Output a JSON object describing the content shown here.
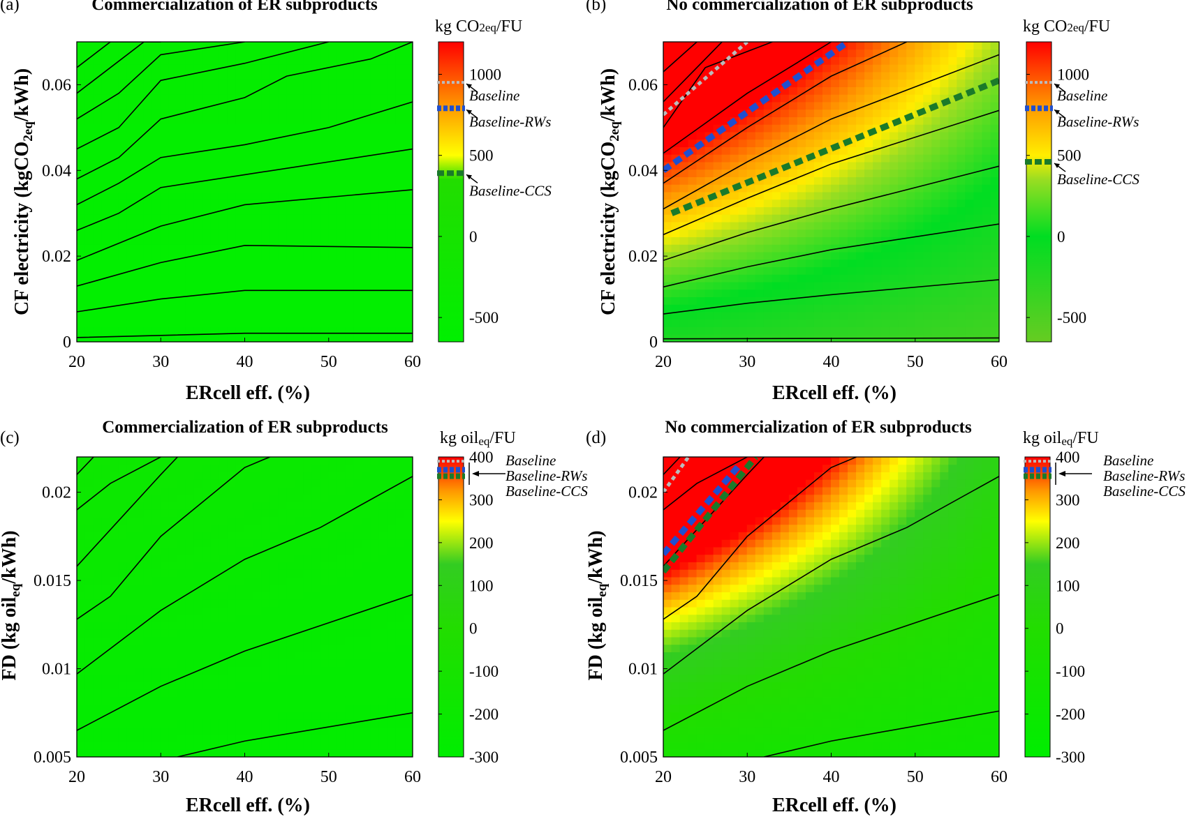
{
  "figure": {
    "colors": {
      "green": "#00e000",
      "yellow": "#ffff00",
      "orange": "#ff8c00",
      "red": "#ff0000",
      "baseline_marker": "#bbbbbb",
      "rws_marker": "#1f4fd0",
      "ccs_marker": "#1a7a2a",
      "contour": "#000000"
    }
  },
  "chart_data": [
    {
      "type": "heatmap",
      "panel": "(a)",
      "title": "Commercialization of ER subproducts",
      "xlabel": "ERcell eff. (%)",
      "ylabel_main": "CF electricity (kgCO",
      "ylabel_sub": "2eq",
      "ylabel_tail": "/kWh)",
      "xlim": [
        20,
        60
      ],
      "ylim": [
        0,
        0.07
      ],
      "xticks": [
        "20",
        "30",
        "40",
        "50",
        "60"
      ],
      "yticks": [
        "0",
        "0.02",
        "0.04",
        "0.06"
      ],
      "ytick_values": [
        0,
        0.02,
        0.04,
        0.06
      ],
      "colorbar": {
        "title_main": "kg CO",
        "title_sub": "2eq",
        "title_tail": "/FU",
        "range": [
          -650,
          1200
        ],
        "stops": [
          [
            -650,
            "#00f000"
          ],
          [
            350,
            "#22dd00"
          ],
          [
            500,
            "#ffff00"
          ],
          [
            800,
            "#ff9900"
          ],
          [
            1200,
            "#ff0000"
          ]
        ],
        "ticks": [
          "-500",
          "0",
          "500",
          "1000"
        ],
        "tick_values": [
          -500,
          0,
          500,
          1000
        ]
      },
      "fill": [
        {
          "range": [
            0,
            1
          ],
          "values": [
            [
              0.02,
              0.02
            ],
            [
              0.09,
              0.09
            ]
          ]
        }
      ],
      "contours": [
        {
          "x": [
            20,
            30,
            40,
            60
          ],
          "y": [
            0.001,
            0.0015,
            0.002,
            0.002
          ]
        },
        {
          "x": [
            20,
            30,
            40,
            60
          ],
          "y": [
            0.007,
            0.01,
            0.012,
            0.012
          ]
        },
        {
          "x": [
            20,
            30,
            40,
            60
          ],
          "y": [
            0.013,
            0.0185,
            0.0225,
            0.022
          ]
        },
        {
          "x": [
            20,
            30,
            40,
            60
          ],
          "y": [
            0.019,
            0.027,
            0.032,
            0.0355
          ]
        },
        {
          "x": [
            20,
            25,
            30,
            40,
            60
          ],
          "y": [
            0.026,
            0.03,
            0.036,
            0.039,
            0.045
          ]
        },
        {
          "x": [
            20,
            25,
            30,
            40,
            50,
            60
          ],
          "y": [
            0.032,
            0.037,
            0.043,
            0.046,
            0.05,
            0.056
          ]
        },
        {
          "x": [
            20,
            25,
            30,
            40,
            45,
            55,
            60
          ],
          "y": [
            0.038,
            0.043,
            0.052,
            0.057,
            0.062,
            0.066,
            0.07
          ]
        },
        {
          "x": [
            20,
            25,
            30,
            40,
            50
          ],
          "y": [
            0.045,
            0.05,
            0.061,
            0.065,
            0.07
          ]
        },
        {
          "x": [
            20,
            25,
            30,
            40
          ],
          "y": [
            0.052,
            0.058,
            0.067,
            0.07
          ]
        },
        {
          "x": [
            20,
            28,
            30
          ],
          "y": [
            0.058,
            0.07,
            0.07
          ]
        },
        {
          "x": [
            20,
            24,
            30
          ],
          "y": [
            0.064,
            0.07,
            0.07
          ]
        }
      ],
      "markers": [
        {
          "name": "Baseline",
          "value": 950,
          "style": "dotted"
        },
        {
          "name": "Baseline-RWs",
          "value": 790,
          "style": "dashed"
        },
        {
          "name": "Baseline-CCS",
          "value": 390,
          "style": "long-dashed"
        }
      ],
      "marker_lines": []
    },
    {
      "type": "heatmap",
      "panel": "(b)",
      "title": "No commercialization of ER subproducts",
      "xlabel": "ERcell eff. (%)",
      "ylabel_main": "CF electricity (kgCO",
      "ylabel_sub": "2eq",
      "ylabel_tail": "/kWh)",
      "xlim": [
        20,
        60
      ],
      "ylim": [
        0,
        0.07
      ],
      "xticks": [
        "20",
        "30",
        "40",
        "50",
        "60"
      ],
      "yticks": [
        "0",
        "0.02",
        "0.04",
        "0.06"
      ],
      "ytick_values": [
        0,
        0.02,
        0.04,
        0.06
      ],
      "colorbar": {
        "title_main": "kg CO",
        "title_sub": "2eq",
        "title_tail": "/FU",
        "range": [
          -650,
          1200
        ],
        "stops": [
          [
            -650,
            "#66cc22"
          ],
          [
            0,
            "#00dd22"
          ],
          [
            350,
            "#99dd22"
          ],
          [
            500,
            "#ffee00"
          ],
          [
            800,
            "#ff9900"
          ],
          [
            1200,
            "#ff0000"
          ]
        ],
        "ticks": [
          "-500",
          "0",
          "500",
          "1000"
        ],
        "tick_values": [
          -500,
          0,
          500,
          1000
        ]
      },
      "fill": [
        {
          "range": [
            0,
            1
          ],
          "values": [
            [
              0.25,
              0.12
            ],
            [
              1.0,
              0.55
            ]
          ]
        }
      ],
      "contours": [
        {
          "x": [
            20,
            60
          ],
          "y": [
            0.0007,
            0.0009
          ]
        },
        {
          "x": [
            20,
            30,
            40,
            60
          ],
          "y": [
            0.0065,
            0.009,
            0.011,
            0.0145
          ]
        },
        {
          "x": [
            20,
            30,
            40,
            60
          ],
          "y": [
            0.0128,
            0.0175,
            0.0215,
            0.0275
          ]
        },
        {
          "x": [
            20,
            30,
            40,
            60
          ],
          "y": [
            0.019,
            0.0255,
            0.031,
            0.041
          ]
        },
        {
          "x": [
            20,
            30,
            40,
            60
          ],
          "y": [
            0.025,
            0.0335,
            0.0415,
            0.054
          ]
        },
        {
          "x": [
            20,
            30,
            40,
            60
          ],
          "y": [
            0.031,
            0.042,
            0.052,
            0.067
          ]
        },
        {
          "x": [
            20,
            30,
            40,
            49
          ],
          "y": [
            0.037,
            0.05,
            0.062,
            0.07
          ]
        },
        {
          "x": [
            20,
            30,
            40
          ],
          "y": [
            0.044,
            0.058,
            0.07
          ]
        },
        {
          "x": [
            20,
            25,
            33
          ],
          "y": [
            0.05,
            0.064,
            0.07
          ]
        },
        {
          "x": [
            20,
            27
          ],
          "y": [
            0.056,
            0.07
          ]
        },
        {
          "x": [
            20,
            24
          ],
          "y": [
            0.063,
            0.07
          ]
        }
      ],
      "markers": [
        {
          "name": "Baseline",
          "value": 950,
          "style": "dotted"
        },
        {
          "name": "Baseline-RWs",
          "value": 790,
          "style": "dashed"
        },
        {
          "name": "Baseline-CCS",
          "value": 460,
          "style": "long-dashed"
        }
      ],
      "marker_lines": [
        {
          "name": "Baseline",
          "x": [
            20,
            30
          ],
          "y": [
            0.053,
            0.07
          ]
        },
        {
          "name": "Baseline-RWs",
          "x": [
            20,
            42
          ],
          "y": [
            0.04,
            0.07
          ]
        },
        {
          "name": "Baseline-CCS",
          "x": [
            21,
            60
          ],
          "y": [
            0.03,
            0.061
          ]
        }
      ]
    },
    {
      "type": "heatmap",
      "panel": "(c)",
      "title": "Commercialization of ER subproducts",
      "xlabel": "ERcell eff. (%)",
      "ylabel_main": "FD (kg oil",
      "ylabel_sub": "eq",
      "ylabel_tail": "/kWh)",
      "xlim": [
        20,
        60
      ],
      "ylim": [
        0.005,
        0.022
      ],
      "xticks": [
        "20",
        "30",
        "40",
        "50",
        "60"
      ],
      "yticks": [
        "0.005",
        "0.01",
        "0.015",
        "0.02"
      ],
      "ytick_values": [
        0.005,
        0.01,
        0.015,
        0.02
      ],
      "colorbar": {
        "title_main": "kg oil",
        "title_sub": "eq",
        "title_tail": "/FU",
        "range": [
          -300,
          400
        ],
        "stops": [
          [
            -300,
            "#00ee00"
          ],
          [
            0,
            "#22dd00"
          ],
          [
            150,
            "#33cc22"
          ],
          [
            250,
            "#ffff00"
          ],
          [
            320,
            "#ff9900"
          ],
          [
            400,
            "#ff0000"
          ]
        ],
        "ticks": [
          "-300",
          "-200",
          "-100",
          "0",
          "100",
          "200",
          "300",
          "400"
        ],
        "tick_values": [
          -300,
          -200,
          -100,
          0,
          100,
          200,
          300,
          400
        ]
      },
      "fill": [
        {
          "range": [
            0,
            1
          ],
          "values": [
            [
              0.03,
              0.03
            ],
            [
              0.18,
              0.1
            ]
          ]
        }
      ],
      "contours": [
        {
          "x": [
            32,
            40,
            60
          ],
          "y": [
            0.005,
            0.0059,
            0.0075
          ]
        },
        {
          "x": [
            20,
            30,
            40,
            60
          ],
          "y": [
            0.0065,
            0.009,
            0.011,
            0.0142
          ]
        },
        {
          "x": [
            20,
            30,
            40,
            49,
            60
          ],
          "y": [
            0.0097,
            0.0133,
            0.0162,
            0.018,
            0.0209
          ]
        },
        {
          "x": [
            20,
            24,
            30,
            40,
            43
          ],
          "y": [
            0.0128,
            0.0141,
            0.0175,
            0.0214,
            0.022
          ]
        },
        {
          "x": [
            20,
            30,
            32
          ],
          "y": [
            0.0158,
            0.021,
            0.022
          ]
        },
        {
          "x": [
            20,
            24,
            30
          ],
          "y": [
            0.019,
            0.0205,
            0.022
          ]
        },
        {
          "x": [
            20,
            22
          ],
          "y": [
            0.021,
            0.022
          ]
        }
      ],
      "markers": [
        {
          "name": "Baseline",
          "value": 390,
          "style": "dotted"
        },
        {
          "name": "Baseline-RWs",
          "value": 370,
          "style": "dashed"
        },
        {
          "name": "Baseline-CCS",
          "value": 355,
          "style": "dotted"
        }
      ],
      "marker_lines": []
    },
    {
      "type": "heatmap",
      "panel": "(d)",
      "title": "No commercialization of ER subproducts",
      "xlabel": "ERcell eff. (%)",
      "ylabel_main": "FD (kg oil",
      "ylabel_sub": "eq",
      "ylabel_tail": "/kWh)",
      "xlim": [
        20,
        60
      ],
      "ylim": [
        0.005,
        0.022
      ],
      "xticks": [
        "20",
        "30",
        "40",
        "50",
        "60"
      ],
      "yticks": [
        "0.005",
        "0.01",
        "0.015",
        "0.02"
      ],
      "ytick_values": [
        0.005,
        0.01,
        0.015,
        0.02
      ],
      "colorbar": {
        "title_main": "kg oil",
        "title_sub": "eq",
        "title_tail": "/FU",
        "range": [
          -300,
          400
        ],
        "stops": [
          [
            -300,
            "#00ee00"
          ],
          [
            0,
            "#22dd00"
          ],
          [
            150,
            "#33cc22"
          ],
          [
            250,
            "#ffff00"
          ],
          [
            320,
            "#ff9900"
          ],
          [
            400,
            "#ff0000"
          ]
        ],
        "ticks": [
          "-300",
          "-200",
          "-100",
          "0",
          "100",
          "200",
          "300",
          "400"
        ],
        "tick_values": [
          -300,
          -200,
          -100,
          0,
          100,
          200,
          300,
          400
        ]
      },
      "fill": [
        {
          "range": [
            0,
            1
          ],
          "values": [
            [
              0.3,
              0.18
            ],
            [
              1.0,
              0.55
            ]
          ]
        }
      ],
      "contours": [
        {
          "x": [
            32,
            40,
            60
          ],
          "y": [
            0.005,
            0.0059,
            0.0076
          ]
        },
        {
          "x": [
            20,
            30,
            40,
            60
          ],
          "y": [
            0.0065,
            0.009,
            0.011,
            0.0142
          ]
        },
        {
          "x": [
            20,
            30,
            40,
            49,
            60
          ],
          "y": [
            0.0097,
            0.0133,
            0.0162,
            0.018,
            0.0209
          ]
        },
        {
          "x": [
            20,
            24,
            30,
            40,
            43
          ],
          "y": [
            0.0128,
            0.0141,
            0.0175,
            0.0214,
            0.022
          ]
        },
        {
          "x": [
            20,
            30,
            32
          ],
          "y": [
            0.0158,
            0.021,
            0.022
          ]
        },
        {
          "x": [
            20,
            24,
            30
          ],
          "y": [
            0.019,
            0.0205,
            0.022
          ]
        },
        {
          "x": [
            20,
            22
          ],
          "y": [
            0.021,
            0.022
          ]
        }
      ],
      "markers": [
        {
          "name": "Baseline",
          "value": 390,
          "style": "dotted"
        },
        {
          "name": "Baseline-RWs",
          "value": 370,
          "style": "dashed"
        },
        {
          "name": "Baseline-CCS",
          "value": 355,
          "style": "dotted"
        }
      ],
      "marker_lines": [
        {
          "name": "Baseline",
          "x": [
            20,
            23
          ],
          "y": [
            0.02,
            0.022
          ]
        },
        {
          "name": "Baseline-RWs",
          "x": [
            20,
            29
          ],
          "y": [
            0.0165,
            0.0215
          ]
        },
        {
          "name": "Baseline-CCS",
          "x": [
            20,
            31
          ],
          "y": [
            0.0155,
            0.022
          ]
        }
      ]
    }
  ]
}
